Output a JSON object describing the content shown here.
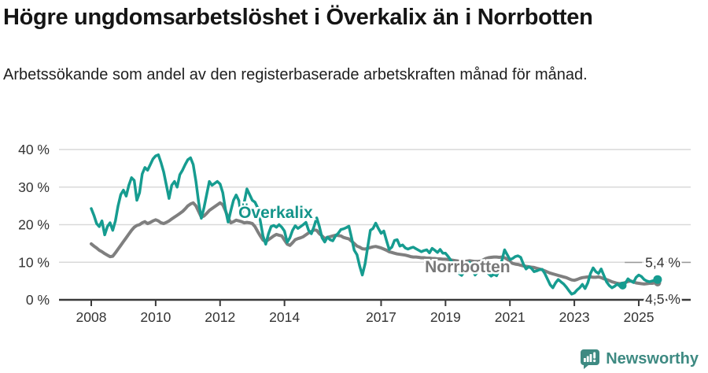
{
  "header": {
    "title": "Högre ungdomsarbetslöshet i Överkalix än i Norrbotten",
    "subtitle": "Arbetssökande som andel av den registerbaserade arbetskraften månad för månad."
  },
  "footer": {
    "brand": "Newsworthy",
    "logo_icon": "newsworthy-speech-bubble-bar-chart-icon"
  },
  "colors": {
    "overkalix": "#169c90",
    "norrbotten": "#7f7f7f",
    "overkalix_label": "#14948a",
    "norrbotten_label": "#787878",
    "grid": "#d9d9d9",
    "axis": "#3a3a3a",
    "tick_text": "#333333",
    "end_label_text": "#333333",
    "leader_line": "#999999",
    "brand": "#3e8a82"
  },
  "chart_data": {
    "type": "line",
    "title": "Högre ungdomsarbetslöshet i Överkalix än i Norrbotten",
    "subtitle": "Arbetssökande som andel av den registerbaserade arbetskraften månad för månad.",
    "x_unit": "month",
    "x_start": "2008-01",
    "x_end": "2025-08",
    "ylim": [
      0,
      42
    ],
    "y_ticks": [
      0,
      10,
      20,
      30,
      40
    ],
    "y_tick_suffix": " %",
    "x_tick_years": [
      2008,
      2010,
      2012,
      2014,
      2017,
      2019,
      2021,
      2023,
      2025
    ],
    "grid": "horizontal",
    "legend_position": "inline-labels",
    "series": [
      {
        "name": "Överkalix",
        "color": "#169c90",
        "end_label": "5,4 %",
        "end_value": 5.4,
        "values": [
          24.3,
          22.5,
          20.3,
          19.5,
          21.0,
          17.3,
          19.5,
          20.5,
          18.5,
          21.0,
          25.0,
          28.0,
          29.2,
          27.6,
          30.5,
          32.5,
          31.8,
          26.5,
          28.5,
          33.5,
          35.2,
          34.5,
          36.0,
          37.5,
          38.3,
          38.6,
          36.5,
          34.0,
          30.5,
          27.0,
          30.5,
          31.5,
          30.0,
          33.3,
          34.5,
          36.0,
          37.3,
          37.8,
          36.0,
          31.5,
          26.0,
          21.7,
          24.5,
          28.0,
          31.5,
          30.5,
          31.0,
          31.5,
          30.8,
          28.5,
          24.0,
          20.7,
          23.7,
          26.5,
          27.9,
          26.4,
          22.2,
          26.0,
          29.5,
          28.0,
          26.5,
          26.0,
          24.5,
          21.0,
          17.0,
          14.8,
          17.5,
          19.5,
          19.8,
          19.3,
          20.0,
          19.3,
          18.3,
          15.3,
          16.5,
          18.5,
          19.7,
          19.0,
          19.5,
          20.0,
          20.6,
          18.5,
          17.6,
          19.5,
          21.8,
          19.5,
          16.5,
          15.4,
          16.7,
          16.0,
          15.7,
          17.0,
          17.7,
          18.7,
          18.9,
          19.2,
          19.6,
          16.5,
          13.2,
          12.0,
          9.0,
          6.6,
          9.5,
          14.0,
          18.5,
          19.0,
          20.4,
          19.0,
          17.7,
          18.3,
          15.8,
          13.4,
          14.0,
          15.8,
          16.0,
          14.3,
          14.6,
          13.8,
          13.5,
          13.8,
          14.0,
          13.6,
          13.2,
          12.8,
          13.1,
          13.3,
          12.5,
          13.7,
          13.2,
          12.6,
          13.4,
          12.4,
          12.4,
          11.5,
          10.5,
          9.5,
          8.0,
          7.0,
          6.5,
          7.5,
          9.0,
          10.0,
          8.0,
          6.6,
          7.5,
          9.0,
          10.5,
          8.5,
          7.0,
          6.3,
          6.8,
          6.4,
          8.0,
          10.5,
          13.3,
          12.0,
          10.7,
          11.0,
          11.5,
          11.7,
          11.3,
          9.5,
          8.2,
          8.8,
          8.4,
          7.5,
          7.7,
          8.0,
          8.1,
          7.0,
          5.5,
          4.0,
          3.2,
          4.5,
          5.4,
          4.8,
          4.2,
          3.4,
          2.4,
          1.5,
          1.8,
          2.6,
          3.2,
          4.1,
          3.0,
          4.5,
          7.0,
          8.5,
          7.5,
          7.0,
          8.2,
          6.5,
          4.8,
          3.8,
          3.2,
          3.6,
          4.2,
          3.6,
          3.8,
          4.4,
          5.6,
          5.0,
          4.6,
          6.0,
          6.6,
          6.2,
          5.4,
          5.0,
          4.8,
          5.0,
          5.2,
          5.4
        ]
      },
      {
        "name": "Norrbotten",
        "color": "#7f7f7f",
        "end_label": "4,5 %",
        "end_value": 4.5,
        "values": [
          14.9,
          14.3,
          13.8,
          13.2,
          12.8,
          12.3,
          11.9,
          11.5,
          11.6,
          12.5,
          13.5,
          14.5,
          15.5,
          16.5,
          17.5,
          18.5,
          19.3,
          19.8,
          20.0,
          20.5,
          20.8,
          20.3,
          20.6,
          21.0,
          21.3,
          21.0,
          20.5,
          20.3,
          20.6,
          21.0,
          21.5,
          22.0,
          22.5,
          23.0,
          23.5,
          24.2,
          25.0,
          25.5,
          25.8,
          25.0,
          23.5,
          22.0,
          22.3,
          23.0,
          23.8,
          24.3,
          24.8,
          25.3,
          25.8,
          25.3,
          23.7,
          21.8,
          20.5,
          20.8,
          21.2,
          21.0,
          20.8,
          20.5,
          20.6,
          20.5,
          20.3,
          19.5,
          18.2,
          17.0,
          15.9,
          15.5,
          16.0,
          16.5,
          17.0,
          17.4,
          17.2,
          17.0,
          15.9,
          14.8,
          14.5,
          15.2,
          16.0,
          16.3,
          16.5,
          16.8,
          17.3,
          17.8,
          18.2,
          18.6,
          18.5,
          17.6,
          17.0,
          16.3,
          16.6,
          16.8,
          17.0,
          17.2,
          17.1,
          17.0,
          16.6,
          16.4,
          16.2,
          15.6,
          15.0,
          14.3,
          14.0,
          13.6,
          13.5,
          13.7,
          13.9,
          14.1,
          14.2,
          14.0,
          13.8,
          13.5,
          13.2,
          12.8,
          12.6,
          12.4,
          12.2,
          12.1,
          12.0,
          11.9,
          11.7,
          11.5,
          11.4,
          11.4,
          11.3,
          11.2,
          11.2,
          11.1,
          11.1,
          11.0,
          11.0,
          10.9,
          10.9,
          10.8,
          10.8,
          10.7,
          10.6,
          10.5,
          10.4,
          10.3,
          10.2,
          10.2,
          10.3,
          10.4,
          10.3,
          10.2,
          10.2,
          10.3,
          10.6,
          11.0,
          11.2,
          11.3,
          11.4,
          11.4,
          11.3,
          11.4,
          11.2,
          10.8,
          10.2,
          9.7,
          9.5,
          9.4,
          9.2,
          9.0,
          8.9,
          8.8,
          8.7,
          8.6,
          8.4,
          8.2,
          8.0,
          7.7,
          7.4,
          7.1,
          6.9,
          6.7,
          6.5,
          6.3,
          6.1,
          5.9,
          5.6,
          5.3,
          5.2,
          5.4,
          5.7,
          5.9,
          6.0,
          6.1,
          6.1,
          6.0,
          6.0,
          6.1,
          5.9,
          5.6,
          5.4,
          5.1,
          4.8,
          4.6,
          4.4,
          4.3,
          4.4,
          4.6,
          4.9,
          5.0,
          4.8,
          4.5,
          4.4,
          4.3,
          4.2,
          4.3,
          4.4,
          4.4,
          4.5,
          4.5
        ]
      }
    ],
    "annotations": {
      "overkalix_label": {
        "text": "Överkalix",
        "x_year": 2012.57,
        "y_pct": 21.8
      },
      "norrbotten_label": {
        "text": "Norrbotten",
        "x_year": 2018.36,
        "y_pct": 7.3
      },
      "year_ago_dot": {
        "series": "Överkalix",
        "x_year": 2024.5,
        "y_pct": 3.8
      },
      "end_label_overkalix": {
        "text": "5,4 %",
        "x_year": 2025.2,
        "y_pct": 8.7
      },
      "end_label_norrbotten": {
        "text": "4,5 %",
        "x_year": 2025.2,
        "y_pct": -1.0
      }
    }
  }
}
